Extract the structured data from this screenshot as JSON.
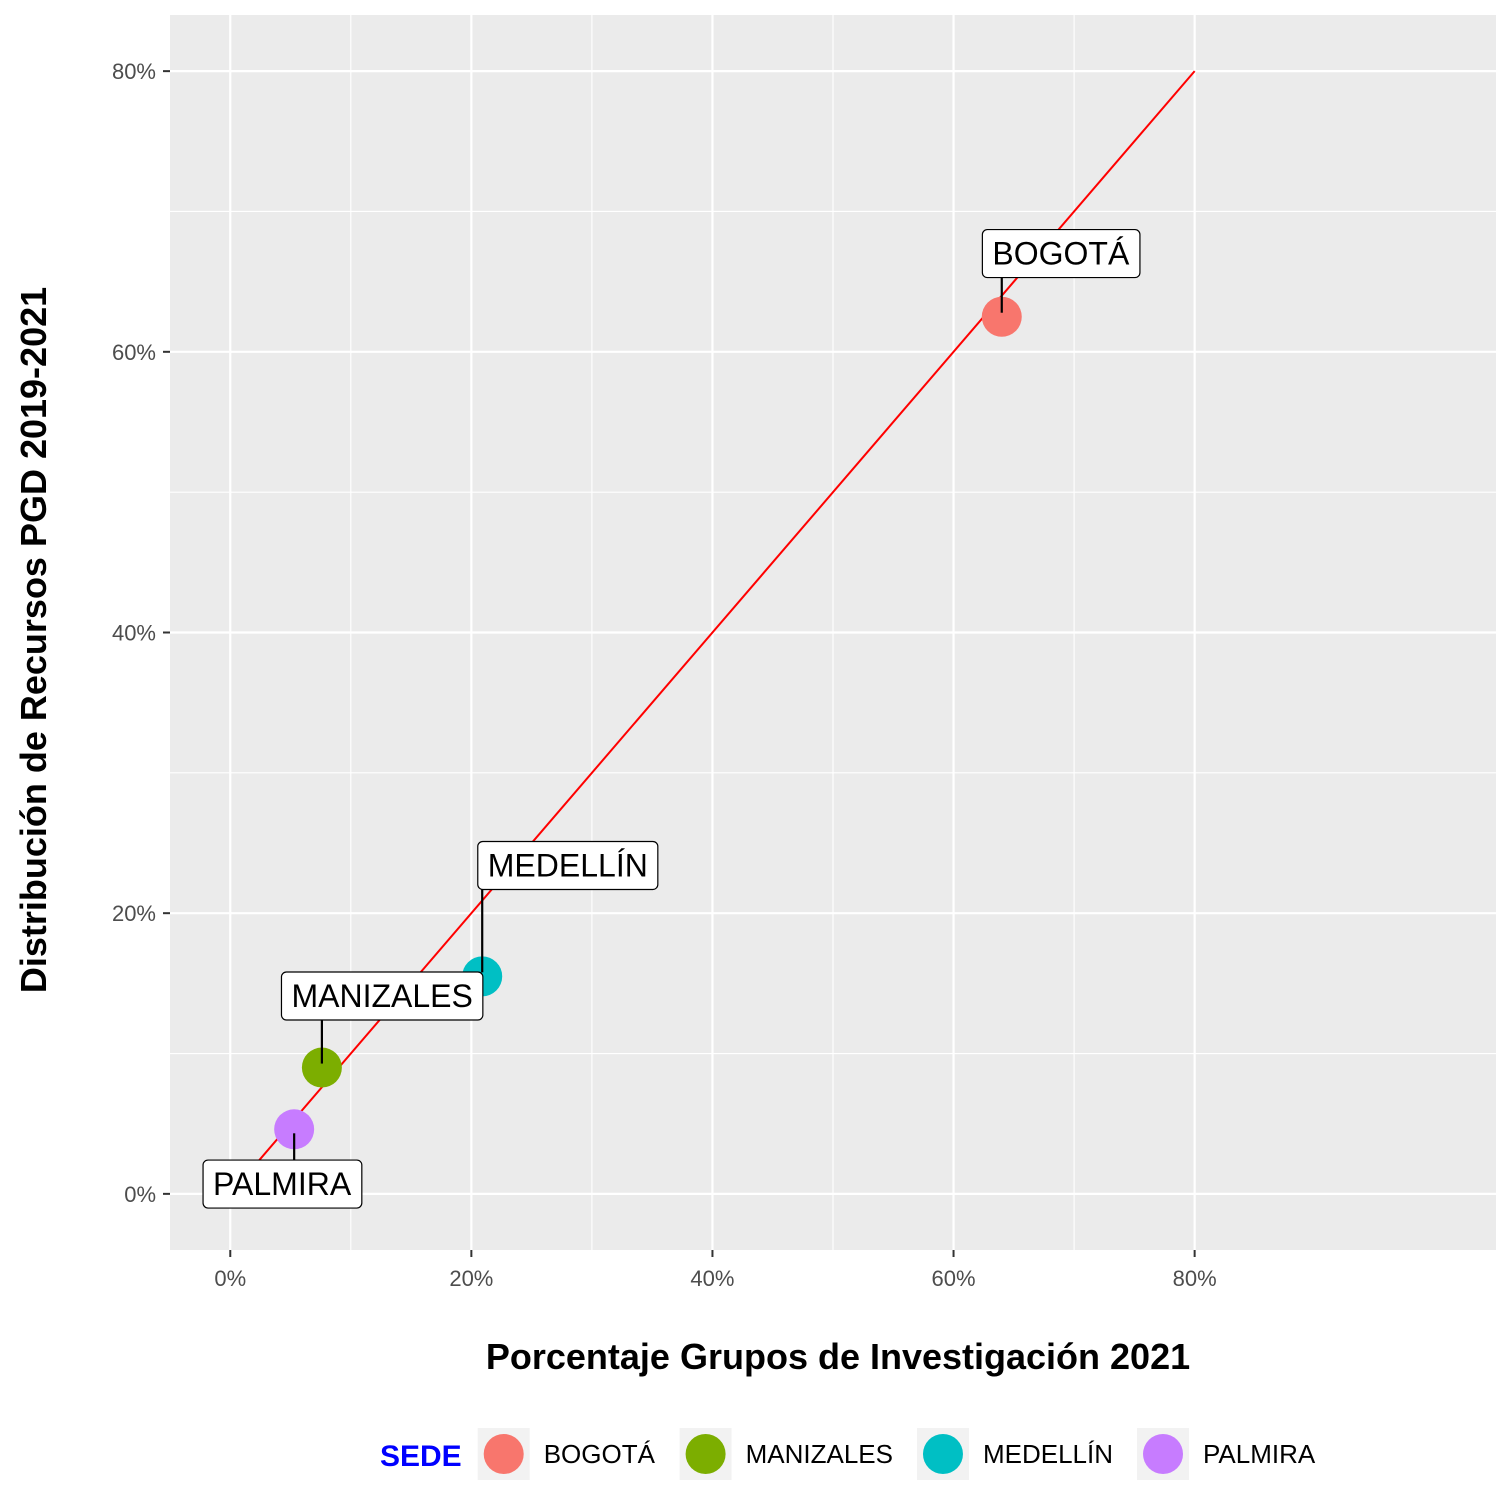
{
  "chart_data": {
    "type": "scatter",
    "xlabel": "Porcentaje Grupos de Investigación 2021",
    "ylabel": "Distribución de Recursos PGD 2019-2021",
    "xlim": [
      -0.05,
      1.05
    ],
    "ylim": [
      -0.04,
      0.84
    ],
    "x_ticks": [
      0,
      0.2,
      0.4,
      0.6,
      0.8
    ],
    "y_ticks": [
      0,
      0.2,
      0.4,
      0.6,
      0.8
    ],
    "x_tick_labels": [
      "0%",
      "20%",
      "40%",
      "60%",
      "80%"
    ],
    "y_tick_labels": [
      "0%",
      "20%",
      "40%",
      "60%",
      "80%"
    ],
    "grid": true,
    "panel_background": "#ebebeb",
    "reference_line": {
      "from": [
        0.02,
        0.02
      ],
      "to": [
        0.8,
        0.8
      ],
      "color": "#ff0000"
    },
    "points": [
      {
        "name": "BOGOTÁ",
        "x": 0.64,
        "y": 0.625,
        "color": "#f8766d",
        "label_x": 0.689,
        "label_y": 0.67
      },
      {
        "name": "MANIZALES",
        "x": 0.076,
        "y": 0.09,
        "color": "#7cae00",
        "label_x": 0.126,
        "label_y": 0.141
      },
      {
        "name": "MEDELLÍN",
        "x": 0.209,
        "y": 0.155,
        "color": "#00bfc4",
        "label_x": 0.28,
        "label_y": 0.234
      },
      {
        "name": "PALMIRA",
        "x": 0.053,
        "y": 0.046,
        "color": "#c77cff",
        "label_x": 0.043,
        "label_y": 0.007
      }
    ],
    "legend": {
      "title": "SEDE",
      "title_color": "#0000ff",
      "position": "bottom",
      "items": [
        "BOGOTÁ",
        "MANIZALES",
        "MEDELLÍN",
        "PALMIRA"
      ]
    }
  }
}
